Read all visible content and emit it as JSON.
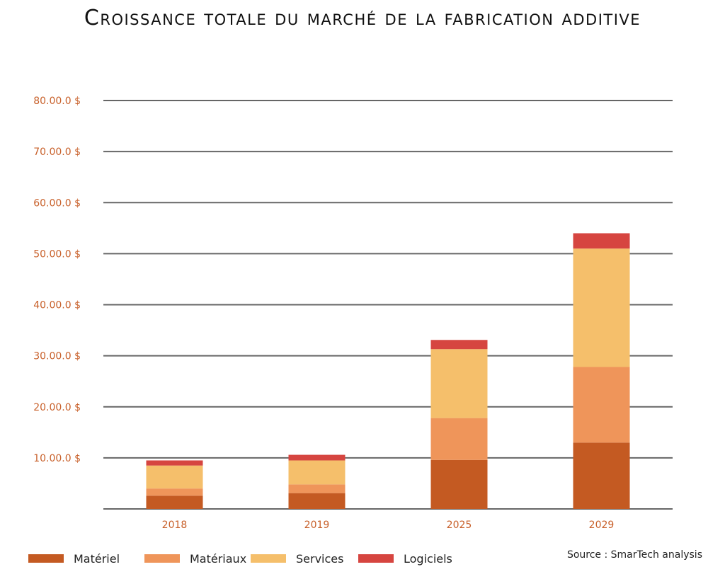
{
  "chart_data": {
    "type": "bar",
    "stacked": true,
    "title": "Croissance totale du marché de la fabrication additive",
    "categories": [
      "2018",
      "2019",
      "2025",
      "2029"
    ],
    "series": [
      {
        "name": "Matériel",
        "color": "#c45a22",
        "values": [
          2.6,
          3.1,
          9.6,
          13.0
        ]
      },
      {
        "name": "Matériaux",
        "color": "#ef955a",
        "values": [
          1.4,
          1.7,
          8.2,
          14.8
        ]
      },
      {
        "name": "Services",
        "color": "#f5bf6b",
        "values": [
          4.5,
          4.7,
          13.5,
          23.2
        ]
      },
      {
        "name": "Logiciels",
        "color": "#d64540",
        "values": [
          1.0,
          1.1,
          1.8,
          3.0
        ]
      }
    ],
    "y_ticks": [
      {
        "value": 10,
        "label": "10.00.0 $"
      },
      {
        "value": 20,
        "label": "20.00.0 $"
      },
      {
        "value": 30,
        "label": "30.00.0 $"
      },
      {
        "value": 40,
        "label": "40.00.0 $"
      },
      {
        "value": 50,
        "label": "50.00.0 $"
      },
      {
        "value": 60,
        "label": "60.00.0 $"
      },
      {
        "value": 70,
        "label": "70.00.0 $"
      },
      {
        "value": 80,
        "label": "80.00.0 $"
      }
    ],
    "ylim": [
      0,
      80
    ],
    "xlabel": "",
    "ylabel": "",
    "grid": true,
    "legend_position": "bottom-left",
    "tick_color": "#c8602a",
    "grid_color": "#666666"
  },
  "source": "Source : SmarTech analysis"
}
